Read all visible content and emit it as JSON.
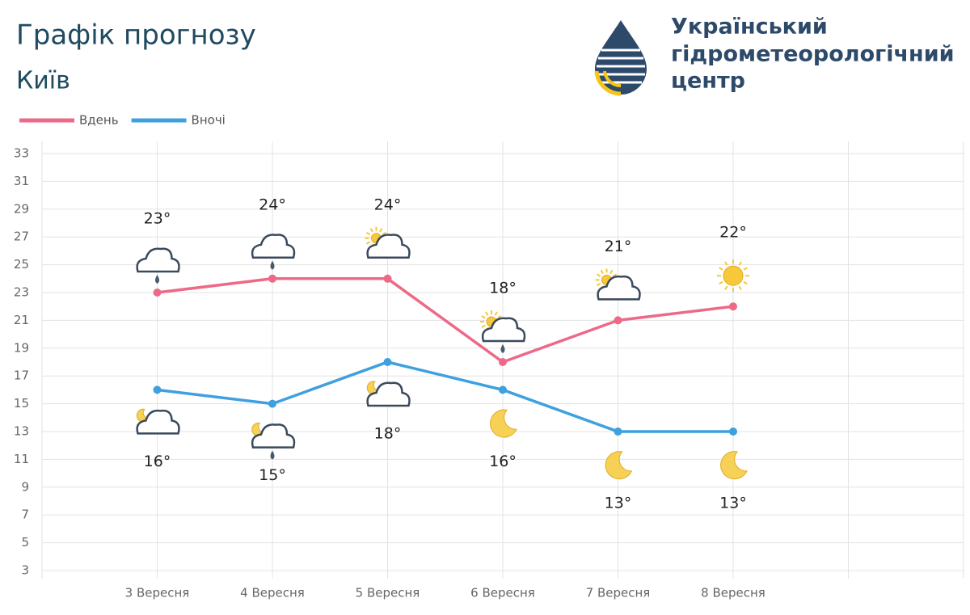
{
  "header": {
    "title": "Графік прогнозу",
    "city": "Київ",
    "org": [
      "Український",
      "гідрометеорологічний",
      "центр"
    ]
  },
  "chart_data": {
    "type": "line",
    "categories": [
      "3 Вересня",
      "4 Вересня",
      "5 Вересня",
      "6 Вересня",
      "7 Вересня",
      "8 Вересня"
    ],
    "series": [
      {
        "name": "Вдень",
        "color": "#ec6a87",
        "values": [
          23,
          24,
          24,
          18,
          21,
          22
        ],
        "value_labels": [
          "23°",
          "24°",
          "24°",
          "18°",
          "21°",
          "22°"
        ]
      },
      {
        "name": "Вночі",
        "color": "#3fa0df",
        "values": [
          16,
          15,
          18,
          16,
          13,
          13
        ],
        "value_labels": [
          "16°",
          "15°",
          "18°",
          "16°",
          "13°",
          "13°"
        ]
      }
    ],
    "ylim": [
      3,
      33
    ],
    "yticks": [
      3,
      5,
      7,
      9,
      11,
      13,
      15,
      17,
      19,
      21,
      23,
      25,
      27,
      29,
      31,
      33
    ],
    "grid": true
  }
}
